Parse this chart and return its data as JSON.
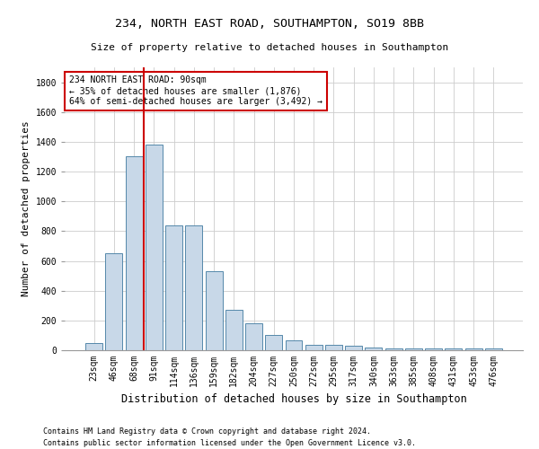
{
  "title1": "234, NORTH EAST ROAD, SOUTHAMPTON, SO19 8BB",
  "title2": "Size of property relative to detached houses in Southampton",
  "xlabel": "Distribution of detached houses by size in Southampton",
  "ylabel": "Number of detached properties",
  "categories": [
    "23sqm",
    "46sqm",
    "68sqm",
    "91sqm",
    "114sqm",
    "136sqm",
    "159sqm",
    "182sqm",
    "204sqm",
    "227sqm",
    "250sqm",
    "272sqm",
    "295sqm",
    "317sqm",
    "340sqm",
    "363sqm",
    "385sqm",
    "408sqm",
    "431sqm",
    "453sqm",
    "476sqm"
  ],
  "values": [
    50,
    650,
    1300,
    1380,
    840,
    840,
    530,
    270,
    180,
    105,
    65,
    35,
    35,
    30,
    20,
    15,
    15,
    10,
    10,
    10,
    10
  ],
  "bar_color": "#c8d8e8",
  "bar_edge_color": "#5588aa",
  "vline_x": 2.5,
  "vline_color": "#cc0000",
  "annotation_text": "234 NORTH EAST ROAD: 90sqm\n← 35% of detached houses are smaller (1,876)\n64% of semi-detached houses are larger (3,492) →",
  "annotation_box_color": "#ffffff",
  "annotation_box_edge": "#cc0000",
  "ylim": [
    0,
    1900
  ],
  "yticks": [
    0,
    200,
    400,
    600,
    800,
    1000,
    1200,
    1400,
    1600,
    1800
  ],
  "footer1": "Contains HM Land Registry data © Crown copyright and database right 2024.",
  "footer2": "Contains public sector information licensed under the Open Government Licence v3.0.",
  "bg_color": "#ffffff",
  "grid_color": "#cccccc",
  "title1_fontsize": 9.5,
  "title2_fontsize": 8,
  "ylabel_fontsize": 8,
  "xlabel_fontsize": 8.5,
  "annot_fontsize": 7,
  "tick_fontsize": 7,
  "footer_fontsize": 6
}
